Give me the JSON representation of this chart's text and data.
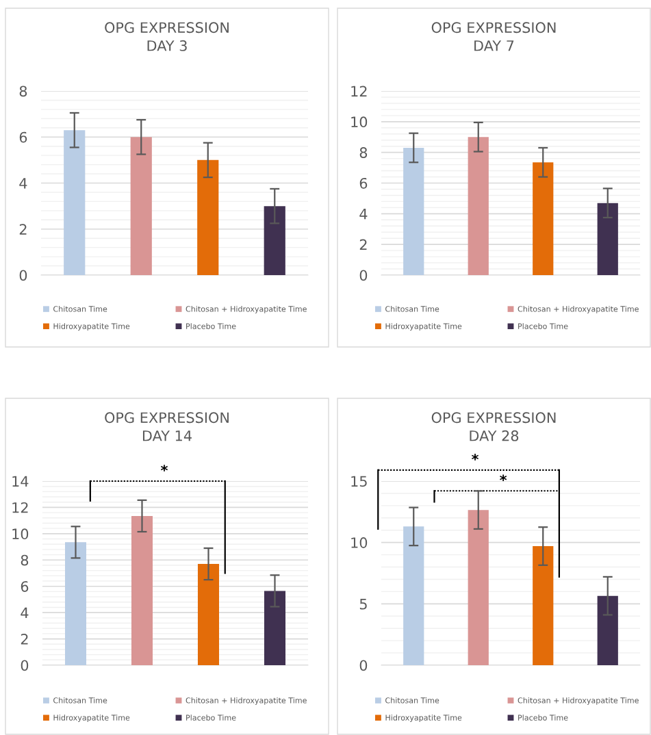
{
  "chart_data": [
    {
      "type": "bar",
      "title": "OPG EXPRESSION\nDAY 3",
      "categories": [
        null
      ],
      "ylim": [
        0,
        8
      ],
      "yticks": [
        0,
        2,
        4,
        6,
        8
      ],
      "grid": "y",
      "legend": "bottom",
      "tick_labels": "y",
      "series": [
        {
          "name": "Chitosan Time",
          "color": "#b9cde5",
          "values": [
            6.3
          ],
          "errors": [
            0.75
          ]
        },
        {
          "name": "Chitosan + Hidroxyapatite Time",
          "color": "#d99594",
          "values": [
            6.0
          ],
          "errors": [
            0.75
          ]
        },
        {
          "name": "Hidroxyapatite Time",
          "color": "#e36c09",
          "values": [
            5.0
          ],
          "errors": [
            0.75
          ]
        },
        {
          "name": "Placebo Time",
          "color": "#403151",
          "values": [
            3.0
          ],
          "errors": [
            0.75
          ]
        }
      ]
    },
    {
      "type": "bar",
      "title": "OPG EXPRESSION\nDAY 7",
      "categories": [
        null
      ],
      "ylim": [
        0,
        12
      ],
      "yticks": [
        0,
        2,
        4,
        6,
        8,
        10,
        12
      ],
      "grid": "y",
      "legend": "bottom",
      "tick_labels": "y",
      "series": [
        {
          "name": "Chitosan Time",
          "color": "#b9cde5",
          "values": [
            8.3
          ],
          "errors": [
            0.95
          ]
        },
        {
          "name": "Chitosan + Hidroxyapatite Time",
          "color": "#d99594",
          "values": [
            9.0
          ],
          "errors": [
            0.95
          ]
        },
        {
          "name": "Hidroxyapatite Time",
          "color": "#e36c09",
          "values": [
            7.35
          ],
          "errors": [
            0.95
          ]
        },
        {
          "name": "Placebo Time",
          "color": "#403151",
          "values": [
            4.7
          ],
          "errors": [
            0.95
          ]
        }
      ]
    },
    {
      "type": "bar",
      "title": "OPG EXPRESSION\nDAY 14",
      "categories": [
        null
      ],
      "ylim": [
        0,
        14
      ],
      "yticks": [
        0,
        2,
        4,
        6,
        8,
        10,
        12,
        14
      ],
      "grid": "y",
      "legend": "bottom",
      "tick_labels": "y",
      "annotations": [
        "*"
      ],
      "series": [
        {
          "name": "Chitosan Time",
          "color": "#b9cde5",
          "values": [
            9.35
          ],
          "errors": [
            1.2
          ]
        },
        {
          "name": "Chitosan + Hidroxyapatite Time",
          "color": "#d99594",
          "values": [
            11.35
          ],
          "errors": [
            1.2
          ]
        },
        {
          "name": "Hidroxyapatite Time",
          "color": "#e36c09",
          "values": [
            7.7
          ],
          "errors": [
            1.2
          ]
        },
        {
          "name": "Placebo Time",
          "color": "#403151",
          "values": [
            5.65
          ],
          "errors": [
            1.2
          ]
        }
      ]
    },
    {
      "type": "bar",
      "title": "OPG EXPRESSION\nDAY 28",
      "categories": [
        null
      ],
      "ylim": [
        0,
        15
      ],
      "yticks": [
        0,
        5,
        10,
        15
      ],
      "grid": "y",
      "legend": "bottom",
      "tick_labels": "y",
      "annotations": [
        "*",
        "*"
      ],
      "series": [
        {
          "name": "Chitosan Time",
          "color": "#b9cde5",
          "values": [
            11.3
          ],
          "errors": [
            1.55
          ]
        },
        {
          "name": "Chitosan + Hidroxyapatite Time",
          "color": "#d99594",
          "values": [
            12.65
          ],
          "errors": [
            1.55
          ]
        },
        {
          "name": "Hidroxyapatite Time",
          "color": "#e36c09",
          "values": [
            9.7
          ],
          "errors": [
            1.55
          ]
        },
        {
          "name": "Placebo Time",
          "color": "#403151",
          "values": [
            5.65
          ],
          "errors": [
            1.55
          ]
        }
      ]
    }
  ]
}
